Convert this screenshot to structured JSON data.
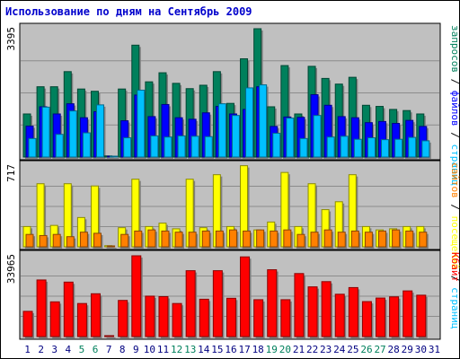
{
  "title": "Использование по дням на Сентябрь 2009",
  "colors": {
    "requests": "#00805c",
    "files": "#0000ff",
    "pages": "#00c0ff",
    "sites": "#ff8000",
    "visits": "#ffff00",
    "kbytes": "#ff0000",
    "panel_bg": "#c0c0c0",
    "weekend": "#00805c",
    "weekday": "#000080"
  },
  "chart_data": [
    {
      "type": "bar",
      "ymax_label": "3395",
      "ylim": [
        0,
        3395
      ],
      "right_labels": [
        {
          "text": "запросов",
          "color": "#00805c"
        },
        {
          "text": "файлов",
          "color": "#0000ff"
        },
        {
          "text": "страниц",
          "color": "#00c0ff"
        }
      ],
      "separator": " / ",
      "categories": [
        "1",
        "2",
        "3",
        "4",
        "5",
        "6",
        "7",
        "8",
        "9",
        "10",
        "11",
        "12",
        "13",
        "14",
        "15",
        "16",
        "17",
        "18",
        "19",
        "20",
        "21",
        "22",
        "23",
        "24",
        "25",
        "26",
        "27",
        "28",
        "29",
        "30",
        "31"
      ],
      "weekend": [
        "5",
        "6",
        "12",
        "13",
        "19",
        "20",
        "26",
        "27"
      ],
      "series": [
        {
          "name": "запросов",
          "color": "#00805c",
          "values": [
            1140,
            1860,
            1860,
            2260,
            1800,
            1740,
            30,
            1800,
            2960,
            1990,
            2230,
            1950,
            1810,
            1900,
            2260,
            1420,
            2600,
            3395,
            1330,
            2420,
            1140,
            2400,
            2080,
            1930,
            2110,
            1370,
            1340,
            1260,
            1230,
            1140,
            null
          ]
        },
        {
          "name": "файлов",
          "color": "#0000ff",
          "values": [
            820,
            1330,
            1140,
            1410,
            1040,
            1200,
            20,
            960,
            1640,
            1070,
            1390,
            1040,
            1000,
            1170,
            1340,
            1140,
            1260,
            1860,
            810,
            1060,
            1050,
            1650,
            1370,
            1070,
            1040,
            910,
            940,
            890,
            970,
            810,
            null
          ]
        },
        {
          "name": "страниц",
          "color": "#00c0ff",
          "values": [
            490,
            1320,
            600,
            1220,
            640,
            1380,
            10,
            510,
            1770,
            560,
            530,
            560,
            550,
            540,
            1410,
            1100,
            1830,
            1910,
            630,
            1030,
            490,
            1100,
            530,
            550,
            470,
            510,
            460,
            470,
            520,
            430,
            null
          ]
        }
      ]
    },
    {
      "type": "bar",
      "ymax_label": "717",
      "ylim": [
        0,
        717
      ],
      "right_labels": [
        {
          "text": "сайтов",
          "color": "#ff8000"
        },
        {
          "text": "посещений",
          "color": "#ffff00"
        },
        {
          "text": "страниц",
          "color": "#00c0ff"
        }
      ],
      "separator": " / ",
      "categories": [
        "1",
        "2",
        "3",
        "4",
        "5",
        "6",
        "7",
        "8",
        "9",
        "10",
        "11",
        "12",
        "13",
        "14",
        "15",
        "16",
        "17",
        "18",
        "19",
        "20",
        "21",
        "22",
        "23",
        "24",
        "25",
        "26",
        "27",
        "28",
        "29",
        "30",
        "31"
      ],
      "weekend": [
        "5",
        "6",
        "12",
        "13",
        "19",
        "20",
        "26",
        "27"
      ],
      "series": [
        {
          "name": "посещений",
          "color": "#ffff00",
          "values": [
            180,
            560,
            190,
            560,
            260,
            540,
            10,
            170,
            600,
            180,
            210,
            160,
            600,
            170,
            640,
            180,
            720,
            150,
            220,
            660,
            180,
            560,
            330,
            400,
            640,
            180,
            150,
            160,
            180,
            180,
            null
          ]
        },
        {
          "name": "сайтов",
          "color": "#ff8000",
          "values": [
            110,
            100,
            110,
            90,
            130,
            120,
            5,
            110,
            140,
            150,
            140,
            130,
            130,
            140,
            140,
            150,
            140,
            150,
            140,
            150,
            110,
            130,
            150,
            130,
            140,
            130,
            140,
            150,
            140,
            130,
            null
          ]
        }
      ]
    },
    {
      "type": "bar",
      "ymax_label": "33965",
      "ylim": [
        0,
        33965
      ],
      "right_labels": [
        {
          "text": "Кбайт",
          "color": "#ff0000"
        }
      ],
      "separator": "",
      "categories": [
        "1",
        "2",
        "3",
        "4",
        "5",
        "6",
        "7",
        "8",
        "9",
        "10",
        "11",
        "12",
        "13",
        "14",
        "15",
        "16",
        "17",
        "18",
        "19",
        "20",
        "21",
        "22",
        "23",
        "24",
        "25",
        "26",
        "27",
        "28",
        "29",
        "30",
        "31"
      ],
      "weekend": [
        "5",
        "6",
        "12",
        "13",
        "19",
        "20",
        "26",
        "27"
      ],
      "series": [
        {
          "name": "Кбайт",
          "color": "#ff0000",
          "values": [
            10600,
            23800,
            14600,
            22900,
            13900,
            18000,
            200,
            15200,
            33965,
            17000,
            16800,
            13900,
            27700,
            15700,
            27700,
            16100,
            33500,
            15500,
            28100,
            15500,
            26500,
            20900,
            23100,
            17800,
            20600,
            14700,
            16200,
            16700,
            19200,
            17400,
            null
          ]
        }
      ]
    }
  ]
}
